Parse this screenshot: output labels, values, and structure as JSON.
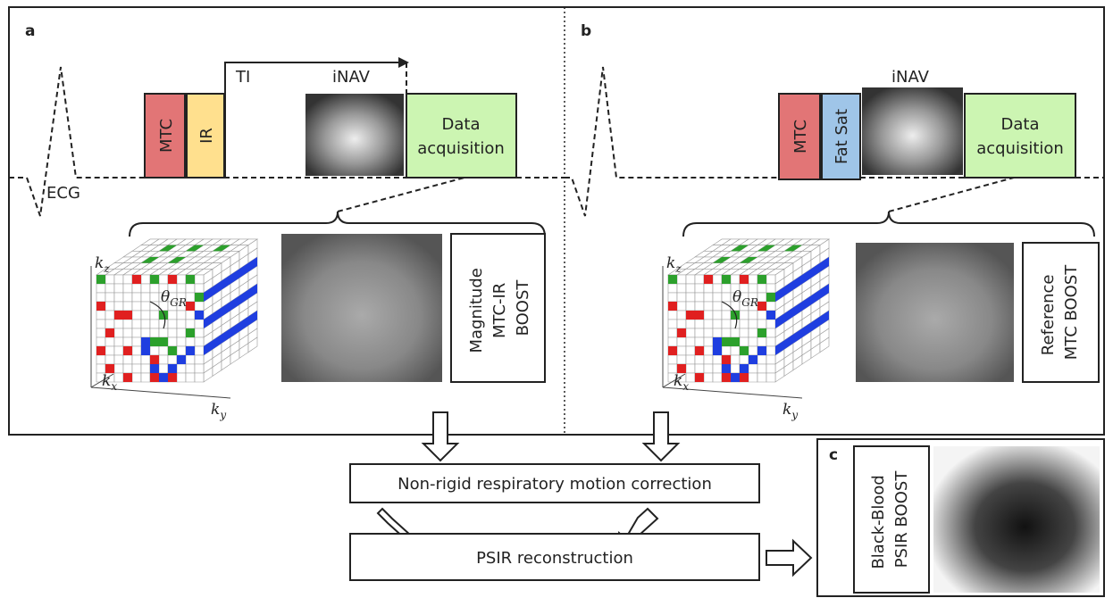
{
  "panel_a": {
    "label": "a",
    "mtc": "MTC",
    "ir": "IR",
    "ti": "TI",
    "inav": "iNAV",
    "acquisition": [
      "Data",
      "acquisition"
    ],
    "ecg": "ECG",
    "kspace": {
      "kz": {
        "base": "k",
        "sub": "z"
      },
      "kx": {
        "base": "k",
        "sub": "x"
      },
      "ky": {
        "base": "k",
        "sub": "y"
      },
      "theta": {
        "base": "θ",
        "sub": "GR"
      }
    },
    "output": [
      "Magnitude",
      "MTC-IR",
      "BOOST"
    ]
  },
  "panel_b": {
    "label": "b",
    "mtc": "MTC",
    "fatsat": "Fat Sat",
    "inav": "iNAV",
    "acquisition": [
      "Data",
      "acquisition"
    ],
    "kspace": {
      "kz": {
        "base": "k",
        "sub": "z"
      },
      "kx": {
        "base": "k",
        "sub": "x"
      },
      "ky": {
        "base": "k",
        "sub": "y"
      },
      "theta": {
        "base": "θ",
        "sub": "GR"
      }
    },
    "output": [
      "Reference",
      "MTC BOOST"
    ]
  },
  "motion_correction": "Non-rigid respiratory motion correction",
  "psir": "PSIR reconstruction",
  "panel_c": {
    "label": "c",
    "output": [
      "Black-Blood",
      "PSIR BOOST"
    ]
  }
}
